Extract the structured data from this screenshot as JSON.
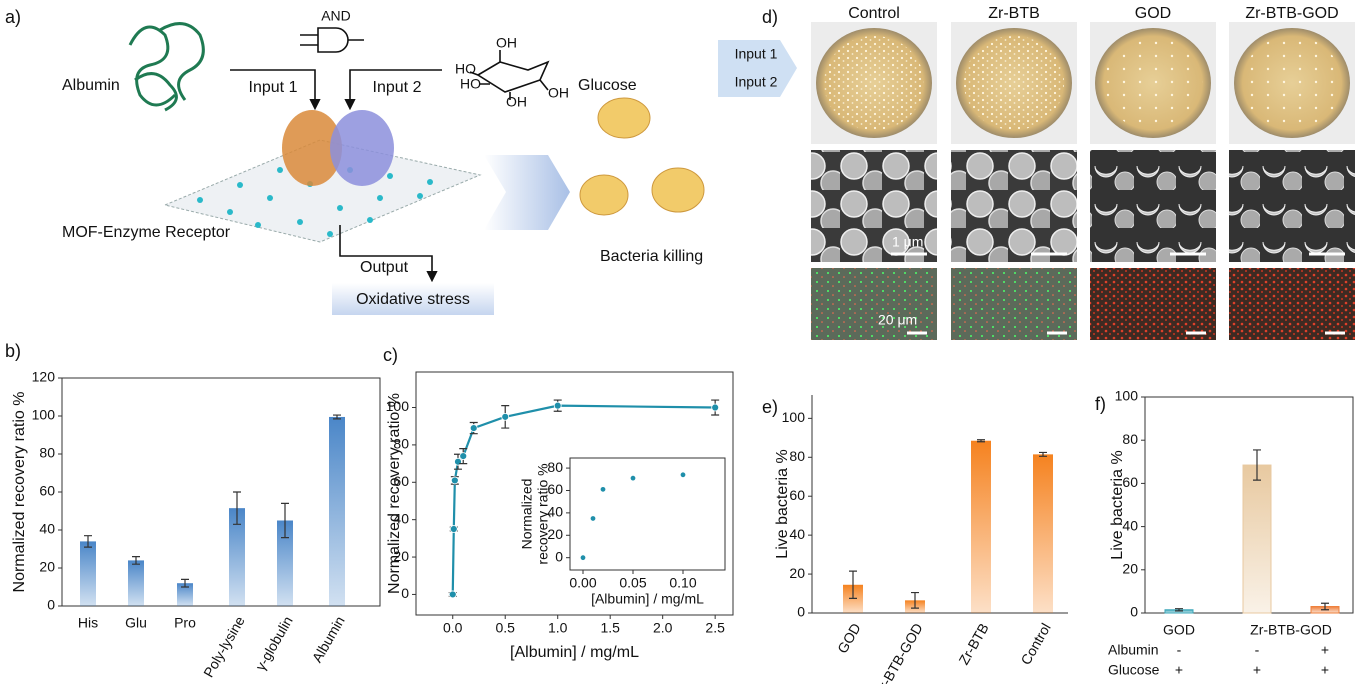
{
  "panel_labels": {
    "a": "a)",
    "b": "b)",
    "c": "c)",
    "d": "d)",
    "e": "e)",
    "f": "f)"
  },
  "diagram": {
    "gate": "AND",
    "input1_name": "Albumin",
    "input1": "Input 1",
    "input2": "Input 2",
    "input2_name": "Glucose",
    "receptor": "MOF-Enzyme Receptor",
    "output": "Output",
    "output_name": "Oxidative stress",
    "result": "Bacteria killing"
  },
  "glucose_labels": [
    "OH",
    "HO",
    "HO",
    "OH",
    "OH"
  ],
  "micrographs": {
    "inputs": [
      "Input 1",
      "Input 2"
    ],
    "columns": [
      "Control",
      "Zr-BTB",
      "GOD",
      "Zr-BTB-GOD"
    ],
    "scale_labels": [
      "1 μm",
      "20 μm"
    ]
  },
  "chart_data": [
    {
      "type": "bar",
      "y_label": "Normalized recovery ratio %",
      "categories": [
        "His",
        "Glu",
        "Pro",
        "Poly-lysine",
        "γ-globulin",
        "Albumin"
      ],
      "values": [
        34,
        24,
        12,
        51.5,
        45,
        99.5
      ],
      "errors": [
        3,
        2,
        2,
        8.5,
        9,
        1
      ],
      "color": "#4a86c8",
      "ylim": [
        0,
        120
      ],
      "yticks": [
        0,
        20,
        40,
        60,
        80,
        100,
        120
      ]
    },
    {
      "type": "line",
      "y_label": "Normalized recovery ratio %",
      "x_label": "[Albumin] / mg/mL",
      "x": [
        0,
        0.01,
        0.02,
        0.05,
        0.1,
        0.2,
        0.5,
        1,
        2.5
      ],
      "values": [
        0,
        35,
        61,
        71,
        74,
        89,
        95,
        101,
        100
      ],
      "errors": [
        1,
        1,
        2,
        4,
        4,
        3,
        6,
        3,
        4
      ],
      "color": "#1f8faa",
      "xlim": [
        -0.35,
        2.67
      ],
      "ylim": [
        -11,
        119
      ],
      "xticks": [
        {
          "value": 0,
          "label": "0.0"
        },
        0.5,
        {
          "value": 1,
          "label": "1.0"
        },
        1.5,
        {
          "value": 2,
          "label": "2.0"
        },
        2.5
      ],
      "yticks": [
        0,
        20,
        40,
        60,
        80,
        100
      ]
    },
    {
      "type": "scatter",
      "y_label": [
        "Normalized",
        "recovery ratio %"
      ],
      "x_label": "[Albumin] / mg/mL",
      "x": [
        0,
        0.01,
        0.02,
        0.05,
        0.1
      ],
      "values": [
        0,
        35,
        61,
        71,
        74
      ],
      "color": "#1f8faa",
      "xlim": [
        -0.013,
        0.142
      ],
      "ylim": [
        -11,
        89
      ],
      "xticks": [
        {
          "value": 0,
          "label": "0.00"
        },
        0.05,
        {
          "value": 0.1,
          "label": "0.10"
        }
      ],
      "yticks": [
        0,
        20,
        40,
        60,
        80
      ]
    },
    {
      "type": "bar",
      "y_label": "Live bacteria %",
      "categories": [
        "GOD",
        "Zr-BTB-GOD",
        "Zr-BTB",
        "Control"
      ],
      "values": [
        14.5,
        6.5,
        88.5,
        81.5
      ],
      "errors": [
        7,
        4,
        0.5,
        1
      ],
      "color": "#f5821f",
      "ylim": [
        0,
        112
      ],
      "yticks": [
        0,
        20,
        40,
        60,
        80,
        100
      ]
    },
    {
      "type": "bar",
      "y_label": "Live bacteria %",
      "categories": [
        "GOD",
        "Zr-BTB-GOD",
        null
      ],
      "values": [
        1.5,
        68.5,
        3
      ],
      "errors": [
        0.5,
        7,
        1.5
      ],
      "colors": [
        "#3aa6b9",
        "#e8c9a0",
        "#ef7f3a"
      ],
      "ylim": [
        0,
        100
      ],
      "yticks": [
        0,
        20,
        40,
        60,
        80,
        100
      ],
      "conditions": [
        {
          "name": "Albumin",
          "values": [
            "-",
            "-",
            "+"
          ]
        },
        {
          "name": "Glucose",
          "values": [
            "+",
            "+",
            "+"
          ]
        }
      ]
    }
  ]
}
